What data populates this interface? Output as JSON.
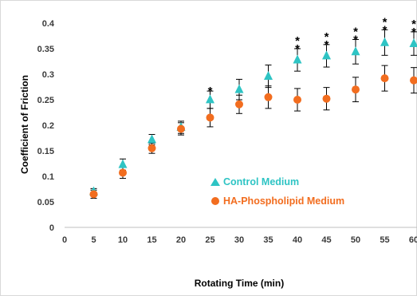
{
  "chart_data": {
    "type": "scatter",
    "xlabel": "Rotating Time (min)",
    "ylabel": "Coefficient of Friction",
    "x": [
      0,
      5,
      10,
      15,
      20,
      25,
      30,
      35,
      40,
      45,
      50,
      55,
      60
    ],
    "x_tick_labels": [
      "0",
      "5",
      "10",
      "15",
      "20",
      "25",
      "30",
      "35",
      "40",
      "45",
      "50",
      "55",
      "60"
    ],
    "xlim": [
      0,
      60
    ],
    "y_tick_labels": [
      "0",
      "0.05",
      "0.1",
      "0.15",
      "0.2",
      "0.25",
      "0.3",
      "0.35",
      "0.4"
    ],
    "ylim": [
      0,
      0.4
    ],
    "grid": false,
    "legend_position": "center",
    "series": [
      {
        "name": "Control Medium",
        "marker": "triangle",
        "color": "#2ec4c4",
        "points": [
          {
            "x": 5,
            "y": 0.07,
            "err": 0.006
          },
          {
            "x": 10,
            "y": 0.123,
            "err": 0.011
          },
          {
            "x": 15,
            "y": 0.172,
            "err": 0.01
          },
          {
            "x": 20,
            "y": 0.196,
            "err": 0.012
          },
          {
            "x": 25,
            "y": 0.25,
            "err": 0.017
          },
          {
            "x": 30,
            "y": 0.27,
            "err": 0.02
          },
          {
            "x": 35,
            "y": 0.296,
            "err": 0.022
          },
          {
            "x": 40,
            "y": 0.328,
            "err": 0.022
          },
          {
            "x": 45,
            "y": 0.336,
            "err": 0.022
          },
          {
            "x": 50,
            "y": 0.344,
            "err": 0.024
          },
          {
            "x": 55,
            "y": 0.362,
            "err": 0.025
          },
          {
            "x": 60,
            "y": 0.36,
            "err": 0.023
          }
        ]
      },
      {
        "name": "HA-Phospholipid Medium",
        "marker": "circle",
        "color": "#f26d1f",
        "points": [
          {
            "x": 5,
            "y": 0.065,
            "err": 0.008
          },
          {
            "x": 10,
            "y": 0.107,
            "err": 0.011
          },
          {
            "x": 15,
            "y": 0.155,
            "err": 0.01
          },
          {
            "x": 20,
            "y": 0.193,
            "err": 0.012
          },
          {
            "x": 25,
            "y": 0.215,
            "err": 0.018
          },
          {
            "x": 30,
            "y": 0.241,
            "err": 0.018
          },
          {
            "x": 35,
            "y": 0.255,
            "err": 0.022
          },
          {
            "x": 40,
            "y": 0.25,
            "err": 0.022
          },
          {
            "x": 45,
            "y": 0.252,
            "err": 0.022
          },
          {
            "x": 50,
            "y": 0.27,
            "err": 0.024
          },
          {
            "x": 55,
            "y": 0.292,
            "err": 0.025
          },
          {
            "x": 60,
            "y": 0.288,
            "err": 0.025
          }
        ]
      }
    ],
    "annotations": [
      {
        "x": 25,
        "text": "*"
      },
      {
        "x": 40,
        "text": "**"
      },
      {
        "x": 45,
        "text": "**"
      },
      {
        "x": 50,
        "text": "**"
      },
      {
        "x": 55,
        "text": "**"
      },
      {
        "x": 60,
        "text": "**"
      }
    ]
  }
}
